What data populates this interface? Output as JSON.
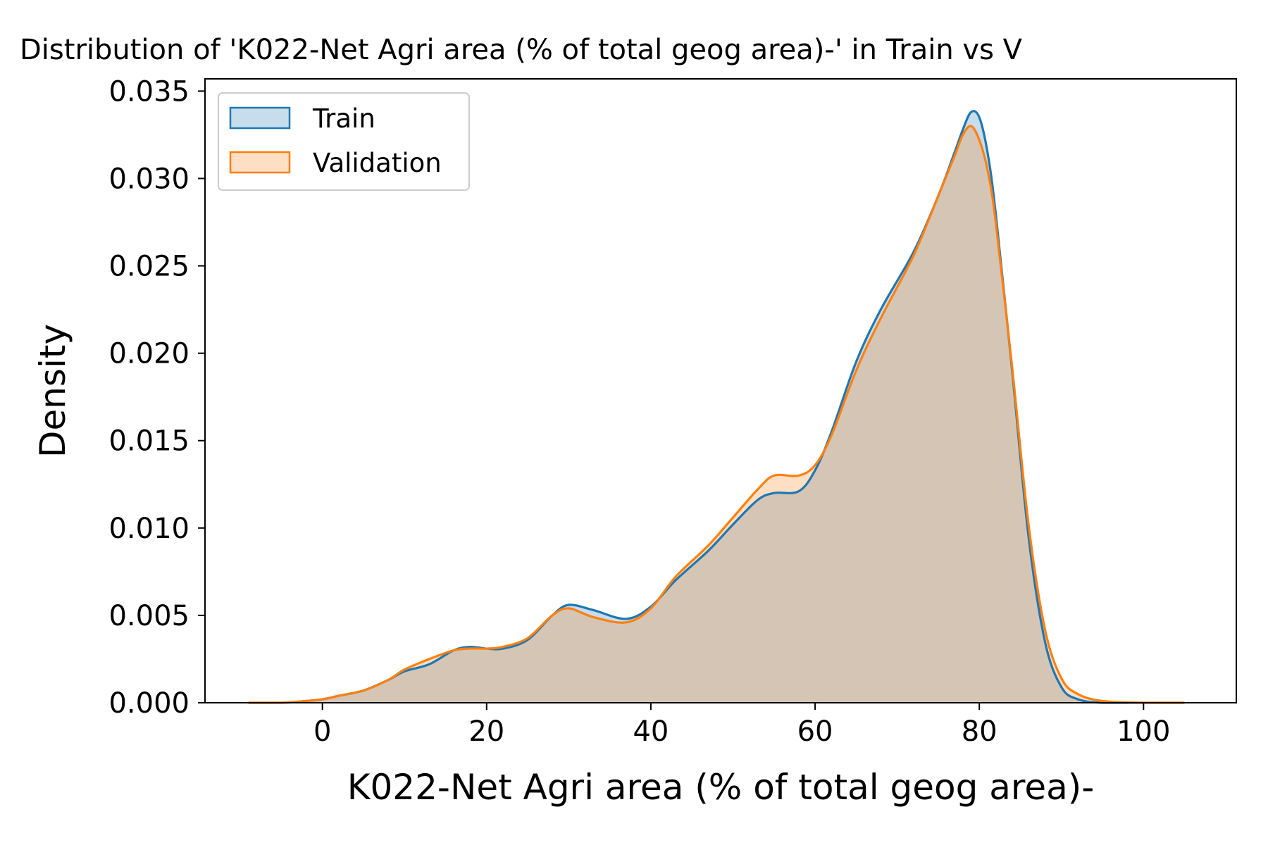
{
  "chart_data": {
    "type": "area",
    "title": "Distribution of 'K022-Net Agri area (% of total geog area)-' in Train vs V",
    "xlabel": "K022-Net Agri area (% of total geog area)-",
    "ylabel": "Density",
    "xlim": [
      -14.3,
      111.3
    ],
    "ylim": [
      0,
      0.0357
    ],
    "xticks": [
      0,
      20,
      40,
      60,
      80,
      100
    ],
    "xtick_labels": [
      "0",
      "20",
      "40",
      "60",
      "80",
      "100"
    ],
    "yticks": [
      0.0,
      0.005,
      0.01,
      0.015,
      0.02,
      0.025,
      0.03,
      0.035
    ],
    "ytick_labels": [
      "0.000",
      "0.005",
      "0.010",
      "0.015",
      "0.020",
      "0.025",
      "0.030",
      "0.035"
    ],
    "grid": false,
    "legend_position": "top-left",
    "series": [
      {
        "name": "Train",
        "color": "#1f77b4",
        "x": [
          -9,
          -5,
          -2,
          0,
          2,
          5,
          8,
          10,
          13,
          16,
          18,
          20,
          22,
          25,
          28,
          30,
          33,
          37,
          40,
          43,
          47,
          50,
          53,
          55,
          58,
          60,
          62,
          65,
          68,
          72,
          75,
          77,
          78,
          79,
          80,
          81,
          82,
          84,
          86,
          88,
          90,
          92,
          95,
          100,
          105
        ],
        "y": [
          0.0,
          0.0,
          0.0001,
          0.0002,
          0.0004,
          0.0007,
          0.0013,
          0.0018,
          0.0022,
          0.003,
          0.0032,
          0.0031,
          0.0031,
          0.0036,
          0.005,
          0.0056,
          0.0053,
          0.0048,
          0.0055,
          0.007,
          0.0087,
          0.0102,
          0.0116,
          0.012,
          0.0121,
          0.0133,
          0.0155,
          0.0195,
          0.0225,
          0.0258,
          0.029,
          0.0315,
          0.0328,
          0.0338,
          0.0335,
          0.0315,
          0.028,
          0.019,
          0.0095,
          0.0035,
          0.0009,
          0.0002,
          0.0,
          0.0,
          0.0
        ]
      },
      {
        "name": "Validation",
        "color": "#ff7f0e",
        "x": [
          -9,
          -5,
          -2,
          0,
          2,
          5,
          8,
          10,
          13,
          16,
          18,
          20,
          22,
          25,
          28,
          30,
          33,
          37,
          40,
          43,
          47,
          50,
          53,
          55,
          58,
          60,
          62,
          65,
          68,
          72,
          75,
          77,
          78,
          79,
          80,
          81,
          82,
          84,
          86,
          88,
          90,
          92,
          95,
          100,
          105
        ],
        "y": [
          0.0,
          0.0,
          0.0001,
          0.0002,
          0.0004,
          0.0007,
          0.0013,
          0.0019,
          0.0025,
          0.003,
          0.0031,
          0.0031,
          0.0032,
          0.0037,
          0.005,
          0.0054,
          0.0049,
          0.0046,
          0.0054,
          0.0072,
          0.009,
          0.0106,
          0.0122,
          0.013,
          0.013,
          0.0136,
          0.0153,
          0.019,
          0.022,
          0.0256,
          0.029,
          0.0313,
          0.0325,
          0.033,
          0.0322,
          0.0305,
          0.0275,
          0.0192,
          0.0102,
          0.0042,
          0.0014,
          0.0005,
          0.0001,
          0.0,
          0.0
        ]
      }
    ]
  }
}
